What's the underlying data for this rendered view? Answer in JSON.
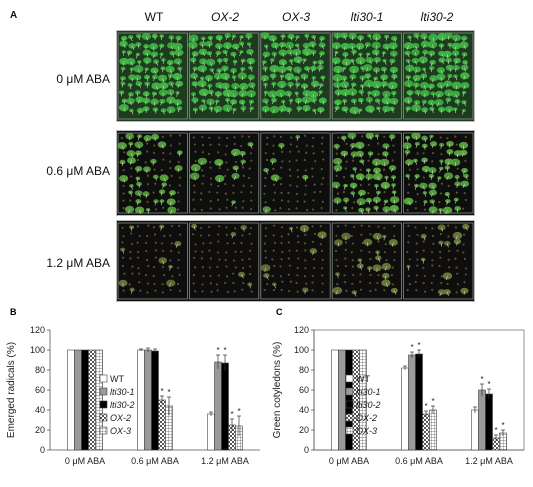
{
  "panel_a": {
    "letter": "A",
    "genotypes": [
      "WT",
      "OX-2",
      "OX-3",
      "lti30-1",
      "lti30-2"
    ],
    "genotype_italic": [
      false,
      true,
      true,
      true,
      true
    ],
    "rows": [
      {
        "label": "0 μM ABA",
        "bg": "#1f3b1f",
        "seedling": "#3fb544",
        "density": 1.0
      },
      {
        "label": "0.6 μM ABA",
        "bg": "#0d0f0e",
        "seedling": "#5aa63f",
        "density": 0.45
      },
      {
        "label": "1.2 μM ABA",
        "bg": "#0d0e0d",
        "seedling": "#6a7a3a",
        "density": 0.18
      }
    ]
  },
  "chart_data": [
    {
      "letter": "B",
      "type": "bar",
      "ylabel": "Emerged radicals (%)",
      "ylim": [
        0,
        120
      ],
      "yticks": [
        0,
        20,
        40,
        60,
        80,
        100,
        120
      ],
      "categories": [
        "0 μM ABA",
        "0.6 μM ABA",
        "1.2 μM ABA"
      ],
      "series": [
        {
          "name": "WT",
          "color": "#ffffff",
          "pattern": "none",
          "values": [
            100,
            100,
            36
          ],
          "errors": [
            0,
            1,
            2
          ]
        },
        {
          "name": "lti30-1",
          "color": "#9a9a9a",
          "pattern": "none",
          "values": [
            100,
            100,
            88
          ],
          "errors": [
            0,
            2,
            7
          ]
        },
        {
          "name": "lti30-2",
          "color": "#000000",
          "pattern": "none",
          "values": [
            100,
            99,
            87
          ],
          "errors": [
            0,
            2,
            8
          ]
        },
        {
          "name": "OX-2",
          "color": "#666666",
          "pattern": "checker",
          "values": [
            100,
            50,
            25
          ],
          "errors": [
            0,
            4,
            6
          ]
        },
        {
          "name": "OX-3",
          "color": "#ffffff",
          "pattern": "grid",
          "values": [
            100,
            44,
            24
          ],
          "errors": [
            0,
            9,
            10
          ]
        }
      ],
      "legend": [
        "WT",
        "lti30-1",
        "lti30-2",
        "OX-2",
        "OX-3"
      ],
      "legend_italic": [
        false,
        true,
        true,
        true,
        true
      ],
      "annotations": [
        {
          "category": 1,
          "series": 3,
          "text": "*"
        },
        {
          "category": 1,
          "series": 4,
          "text": "*"
        },
        {
          "category": 2,
          "series": 1,
          "text": "*"
        },
        {
          "category": 2,
          "series": 2,
          "text": "*"
        },
        {
          "category": 2,
          "series": 3,
          "text": "*"
        },
        {
          "category": 2,
          "series": 4,
          "text": "*"
        }
      ]
    },
    {
      "letter": "C",
      "type": "bar",
      "ylabel": "Green cotyledons (%)",
      "ylim": [
        0,
        120
      ],
      "yticks": [
        0,
        20,
        40,
        60,
        80,
        100,
        120
      ],
      "categories": [
        "0 μM ABA",
        "0.6 μM ABA",
        "1.2 μM ABA"
      ],
      "series": [
        {
          "name": "WT",
          "color": "#ffffff",
          "pattern": "none",
          "values": [
            100,
            82,
            40
          ],
          "errors": [
            0,
            2,
            3
          ]
        },
        {
          "name": "lti30-1",
          "color": "#9a9a9a",
          "pattern": "none",
          "values": [
            100,
            95,
            60
          ],
          "errors": [
            0,
            3,
            6
          ]
        },
        {
          "name": "lti30-2",
          "color": "#000000",
          "pattern": "none",
          "values": [
            100,
            96,
            56
          ],
          "errors": [
            0,
            4,
            5
          ]
        },
        {
          "name": "OX-2",
          "color": "#666666",
          "pattern": "checker",
          "values": [
            100,
            36,
            12
          ],
          "errors": [
            0,
            3,
            3
          ]
        },
        {
          "name": "OX-3",
          "color": "#ffffff",
          "pattern": "grid",
          "values": [
            100,
            40,
            17
          ],
          "errors": [
            0,
            4,
            3
          ]
        }
      ],
      "legend": [
        "WT",
        "lti30-1",
        "lti30-2",
        "OX-2",
        "OX-3"
      ],
      "legend_italic": [
        false,
        true,
        true,
        true,
        true
      ],
      "annotations": [
        {
          "category": 1,
          "series": 1,
          "text": "*"
        },
        {
          "category": 1,
          "series": 2,
          "text": "*"
        },
        {
          "category": 1,
          "series": 3,
          "text": "*"
        },
        {
          "category": 1,
          "series": 4,
          "text": "*"
        },
        {
          "category": 2,
          "series": 1,
          "text": "*"
        },
        {
          "category": 2,
          "series": 2,
          "text": "*"
        },
        {
          "category": 2,
          "series": 3,
          "text": "*"
        },
        {
          "category": 2,
          "series": 4,
          "text": "*"
        }
      ]
    }
  ]
}
